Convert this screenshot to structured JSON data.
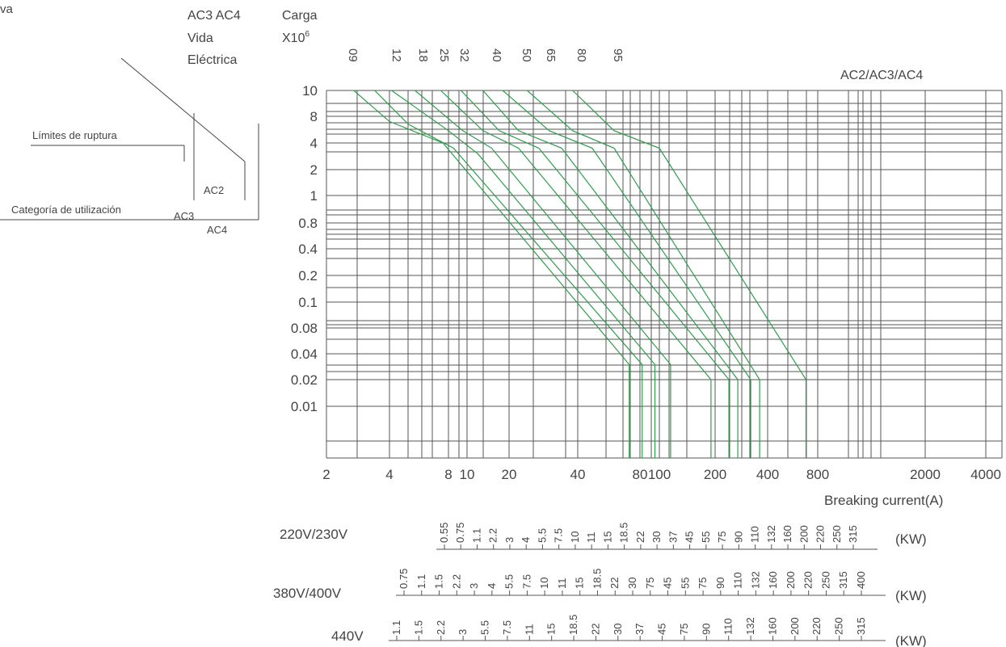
{
  "header": {
    "corner": "va",
    "col1": [
      "AC3 AC4",
      "Vida",
      "Eléctrica"
    ],
    "carga_line1": "Carga",
    "carga_line2": "X10",
    "carga_exp": "6",
    "series_title": "AC2/AC3/AC4"
  },
  "legend_diagram": {
    "rupture_label": "Límites de ruptura",
    "category_label": "Categoría de utilización",
    "ac2": "AC2",
    "ac3": "AC3",
    "ac4": "AC4"
  },
  "chart_data": {
    "type": "line",
    "title": "AC2/AC3/AC4",
    "xlabel": "Breaking current(A)",
    "ylabel": "Carga X10^6",
    "x_scale": "log",
    "y_scale": "log",
    "x_tick_labels": [
      "2",
      "4",
      "8",
      "10",
      "20",
      "40",
      "80",
      "100",
      "200",
      "400",
      "800",
      "2000",
      "4000"
    ],
    "y_tick_labels": [
      "10",
      "8",
      "4",
      "2",
      "1",
      "0.8",
      "0.4",
      "0.2",
      "0.1",
      "0.08",
      "0.04",
      "0.02",
      "0.01"
    ],
    "series_labels_top": [
      "09",
      "12",
      "18",
      "25",
      "32",
      "40",
      "50",
      "65",
      "80",
      "95"
    ],
    "grid": true,
    "line_color": "#2e9e4a",
    "series": [
      {
        "name": "09",
        "x": [
          2.7,
          4.0,
          7.5,
          71
        ],
        "y": [
          10,
          7.0,
          4.0,
          0.03
        ]
      },
      {
        "name": "12",
        "x": [
          3.4,
          5.0,
          8.5,
          82
        ],
        "y": [
          10,
          6.5,
          3.5,
          0.03
        ]
      },
      {
        "name": "18",
        "x": [
          4.1,
          8.0,
          12,
          95
        ],
        "y": [
          10,
          5.5,
          3.0,
          0.03
        ]
      },
      {
        "name": "25",
        "x": [
          5.4,
          9.5,
          15,
          115
        ],
        "y": [
          10,
          5.5,
          3.5,
          0.03
        ]
      },
      {
        "name": "32",
        "x": [
          7.3,
          13,
          22,
          190
        ],
        "y": [
          10,
          5.5,
          3.5,
          0.02
        ]
      },
      {
        "name": "40",
        "x": [
          9.3,
          17,
          27,
          240
        ],
        "y": [
          10,
          5.5,
          3.5,
          0.02
        ]
      },
      {
        "name": "50",
        "x": [
          13,
          22,
          34,
          270
        ],
        "y": [
          10,
          5.5,
          3.5,
          0.02
        ]
      },
      {
        "name": "65",
        "x": [
          18,
          30,
          47,
          320
        ],
        "y": [
          10,
          5.5,
          3.5,
          0.02
        ]
      },
      {
        "name": "80",
        "x": [
          24,
          38,
          60,
          360
        ],
        "y": [
          10,
          5.5,
          3.5,
          0.02
        ]
      },
      {
        "name": "95",
        "x": [
          38,
          60,
          100,
          680
        ],
        "y": [
          10,
          5.5,
          3.5,
          0.02
        ]
      }
    ]
  },
  "voltage_scales": [
    {
      "label": "220V/230V",
      "unit": "(KW)",
      "values": [
        "0.55",
        "0.75",
        "1.1",
        "2.2",
        "3",
        "4",
        "5.5",
        "7.5",
        "10",
        "11",
        "15",
        "18.5",
        "22",
        "30",
        "37",
        "45",
        "55",
        "75",
        "90",
        "110",
        "132",
        "160",
        "200",
        "220",
        "250",
        "315"
      ]
    },
    {
      "label": "380V/400V",
      "unit": "(KW)",
      "values": [
        "0.75",
        "1.1",
        "1.5",
        "2.2",
        "3",
        "4",
        "5.5",
        "7.5",
        "10",
        "11",
        "15",
        "18.5",
        "22",
        "30",
        "75",
        "45",
        "55",
        "75",
        "90",
        "110",
        "132",
        "160",
        "200",
        "220",
        "250",
        "315",
        "400"
      ]
    },
    {
      "label": "440V",
      "unit": "(KW)",
      "values": [
        "1.1",
        "1.5",
        "2.2",
        "3",
        "5.5",
        "7.5",
        "11",
        "15",
        "18.5",
        "22",
        "30",
        "37",
        "45",
        "75",
        "90",
        "110",
        "132",
        "160",
        "200",
        "220",
        "250",
        "315"
      ]
    }
  ]
}
